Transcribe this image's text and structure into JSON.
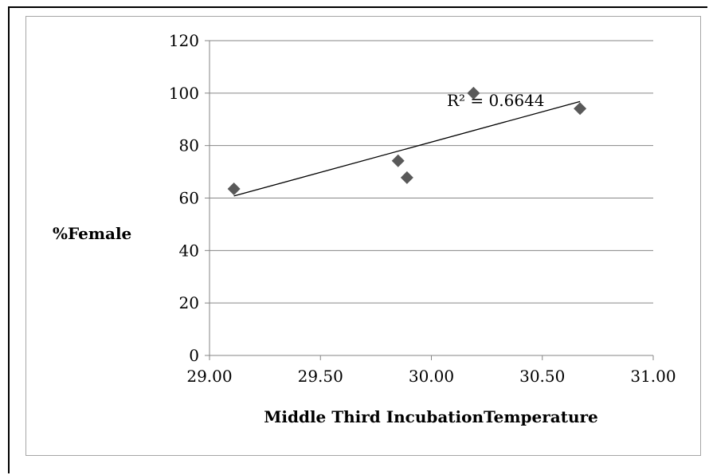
{
  "chart_data": {
    "type": "scatter",
    "title": "",
    "xlabel": "Middle Third IncubationTemperature",
    "ylabel": "%Female",
    "xlim": [
      29.0,
      31.0
    ],
    "ylim": [
      0,
      120
    ],
    "x_ticks": [
      "29.00",
      "29.50",
      "30.00",
      "30.50",
      "31.00"
    ],
    "y_ticks": [
      "0",
      "20",
      "40",
      "60",
      "80",
      "100",
      "120"
    ],
    "grid": "horizontal",
    "legend": "none",
    "series": [
      {
        "points": [
          {
            "x": 29.11,
            "y": 63.5
          },
          {
            "x": 29.85,
            "y": 74.2
          },
          {
            "x": 29.89,
            "y": 67.8
          },
          {
            "x": 30.19,
            "y": 100.0
          },
          {
            "x": 30.67,
            "y": 94.1
          }
        ],
        "marker": "diamond",
        "color": "#595959"
      }
    ],
    "trendline": {
      "type": "linear",
      "from": {
        "x": 29.11,
        "y": 60.8
      },
      "to": {
        "x": 30.67,
        "y": 96.8
      },
      "annotation": "R² = 0.6644"
    }
  },
  "colors": {
    "marker": "#595959",
    "gridline": "#868686",
    "axis": "#868686",
    "frame": "#a6a6a6"
  }
}
